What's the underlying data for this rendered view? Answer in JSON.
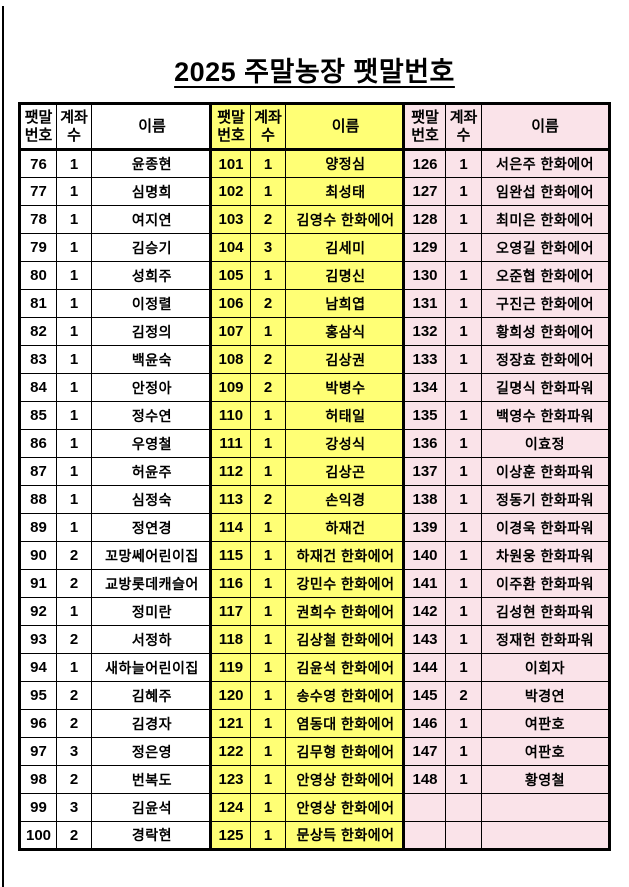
{
  "page": {
    "title": "2025 주말농장 팻말번호"
  },
  "table": {
    "header": {
      "sign_no": "팻말\n번호",
      "account_count": "계좌\n수",
      "name": "이름"
    },
    "groups": [
      {
        "group": "white",
        "bg": "#FFFFFF",
        "rows": [
          [
            "76",
            "1",
            "윤종현"
          ],
          [
            "77",
            "1",
            "심명희"
          ],
          [
            "78",
            "1",
            "여지연"
          ],
          [
            "79",
            "1",
            "김승기"
          ],
          [
            "80",
            "1",
            "성희주"
          ],
          [
            "81",
            "1",
            "이정렬"
          ],
          [
            "82",
            "1",
            "김정의"
          ],
          [
            "83",
            "1",
            "백윤숙"
          ],
          [
            "84",
            "1",
            "안정아"
          ],
          [
            "85",
            "1",
            "정수연"
          ],
          [
            "86",
            "1",
            "우영철"
          ],
          [
            "87",
            "1",
            "허윤주"
          ],
          [
            "88",
            "1",
            "심정숙"
          ],
          [
            "89",
            "1",
            "정연경"
          ],
          [
            "90",
            "2",
            "꼬망쎄어린이집"
          ],
          [
            "91",
            "2",
            "교방롯데캐슬어"
          ],
          [
            "92",
            "1",
            "정미란"
          ],
          [
            "93",
            "2",
            "서정하"
          ],
          [
            "94",
            "1",
            "새하늘어린이집"
          ],
          [
            "95",
            "2",
            "김혜주"
          ],
          [
            "96",
            "2",
            "김경자"
          ],
          [
            "97",
            "3",
            "정은영"
          ],
          [
            "98",
            "2",
            "번복도"
          ],
          [
            "99",
            "3",
            "김윤석"
          ],
          [
            "100",
            "2",
            "경락현"
          ]
        ]
      },
      {
        "group": "yellow",
        "bg": "#FFFF75",
        "rows": [
          [
            "101",
            "1",
            "양정심"
          ],
          [
            "102",
            "1",
            "최성태"
          ],
          [
            "103",
            "2",
            "김영수 한화에어"
          ],
          [
            "104",
            "3",
            "김세미"
          ],
          [
            "105",
            "1",
            "김명신"
          ],
          [
            "106",
            "2",
            "남희엽"
          ],
          [
            "107",
            "1",
            "홍삼식"
          ],
          [
            "108",
            "2",
            "김상권"
          ],
          [
            "109",
            "2",
            "박병수"
          ],
          [
            "110",
            "1",
            "허태일"
          ],
          [
            "111",
            "1",
            "강성식"
          ],
          [
            "112",
            "1",
            "김상곤"
          ],
          [
            "113",
            "2",
            "손익경"
          ],
          [
            "114",
            "1",
            "하재건"
          ],
          [
            "115",
            "1",
            "하재건 한화에어"
          ],
          [
            "116",
            "1",
            "강민수 한화에어"
          ],
          [
            "117",
            "1",
            "권희수 한화에어"
          ],
          [
            "118",
            "1",
            "김상철 한화에어"
          ],
          [
            "119",
            "1",
            "김윤석 한화에어"
          ],
          [
            "120",
            "1",
            "송수영 한화에어"
          ],
          [
            "121",
            "1",
            "염동대 한화에어"
          ],
          [
            "122",
            "1",
            "김무형 한화에어"
          ],
          [
            "123",
            "1",
            "안영상 한화에어"
          ],
          [
            "124",
            "1",
            "안영상 한화에어"
          ],
          [
            "125",
            "1",
            "문상득 한화에어"
          ]
        ]
      },
      {
        "group": "pink",
        "bg": "#FAE3E9",
        "rows": [
          [
            "126",
            "1",
            "서은주 한화에어"
          ],
          [
            "127",
            "1",
            "임완섭 한화에어"
          ],
          [
            "128",
            "1",
            "최미은 한화에어"
          ],
          [
            "129",
            "1",
            "오영길 한화에어"
          ],
          [
            "130",
            "1",
            "오준협 한화에어"
          ],
          [
            "131",
            "1",
            "구진근 한화에어"
          ],
          [
            "132",
            "1",
            "황희성 한화에어"
          ],
          [
            "133",
            "1",
            "정장효 한화에어"
          ],
          [
            "134",
            "1",
            "길명식 한화파워"
          ],
          [
            "135",
            "1",
            "백영수 한화파워"
          ],
          [
            "136",
            "1",
            "이효정"
          ],
          [
            "137",
            "1",
            "이상훈 한화파워"
          ],
          [
            "138",
            "1",
            "정동기 한화파워"
          ],
          [
            "139",
            "1",
            "이경욱 한화파워"
          ],
          [
            "140",
            "1",
            "차원웅 한화파워"
          ],
          [
            "141",
            "1",
            "이주환 한화파워"
          ],
          [
            "142",
            "1",
            "김성현 한화파워"
          ],
          [
            "143",
            "1",
            "정재헌 한화파워"
          ],
          [
            "144",
            "1",
            "이회자"
          ],
          [
            "145",
            "2",
            "박경연"
          ],
          [
            "146",
            "1",
            "여판호"
          ],
          [
            "147",
            "1",
            "여판호"
          ],
          [
            "148",
            "1",
            "황영철"
          ],
          [
            "",
            "",
            ""
          ],
          [
            "",
            "",
            ""
          ]
        ]
      }
    ]
  }
}
